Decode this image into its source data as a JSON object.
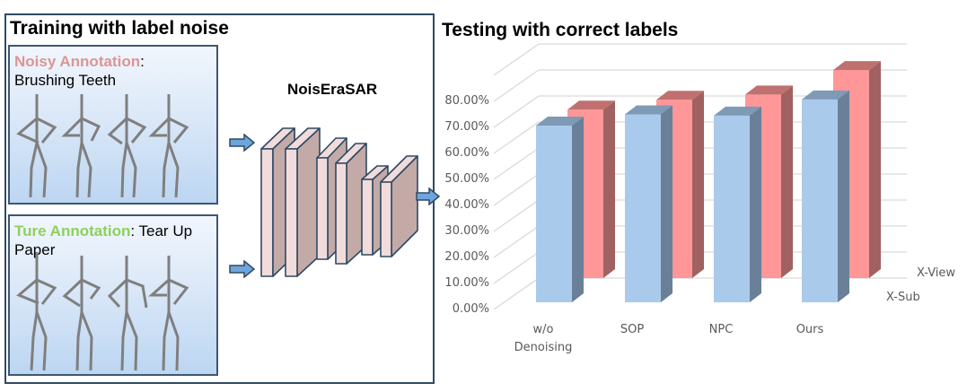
{
  "left_section": {
    "title": "Training with label noise",
    "noisy_panel": {
      "highlight": "Noisy Annotation",
      "colon": ":",
      "label": "Brushing Teeth"
    },
    "true_panel": {
      "highlight": "Ture Annotation",
      "colon": ":",
      "label_line1": " Tear Up",
      "label_line2": "Paper"
    }
  },
  "model": {
    "name": "NoisEraSAR"
  },
  "right_section": {
    "title": "Testing with correct labels"
  },
  "colors": {
    "frame": "#2f4a63",
    "noisy_accent": "#d99694",
    "true_accent": "#8ed05b",
    "arrow_fill": "#6fa5dd",
    "layer_front": "#f2dcdb",
    "layer_side": "#c3aaa7",
    "xsub_front": "#a9caeb",
    "xsub_side": "#6a8099",
    "xsub_top": "#7e9ab5",
    "xview_front": "#ff9698",
    "xview_side": "#a26161",
    "xview_top": "#c0706f"
  },
  "chart_data": {
    "type": "bar",
    "title": "Testing with correct labels",
    "subtype": "3d-clustered-column",
    "categories": [
      "w/o Denoising",
      "SOP",
      "NPC",
      "Ours"
    ],
    "category_lines": [
      [
        "w/o",
        "Denoising"
      ],
      [
        "SOP"
      ],
      [
        "NPC"
      ],
      [
        "Ours"
      ]
    ],
    "series": [
      {
        "name": "X-Sub",
        "values": [
          67.7,
          72.0,
          71.5,
          77.7
        ],
        "color": "#a9caeb"
      },
      {
        "name": "X-View",
        "values": [
          64.5,
          68.3,
          70.3,
          79.7
        ],
        "color": "#ff9698"
      }
    ],
    "y_ticks": [
      "0.00%",
      "10.00%",
      "20.00%",
      "30.00%",
      "40.00%",
      "50.00%",
      "60.00%",
      "70.00%",
      "80.00%"
    ],
    "ylim": [
      0,
      90
    ],
    "xlabel": "",
    "ylabel": "",
    "grid": true,
    "legend_position": "right-depth-axis"
  }
}
